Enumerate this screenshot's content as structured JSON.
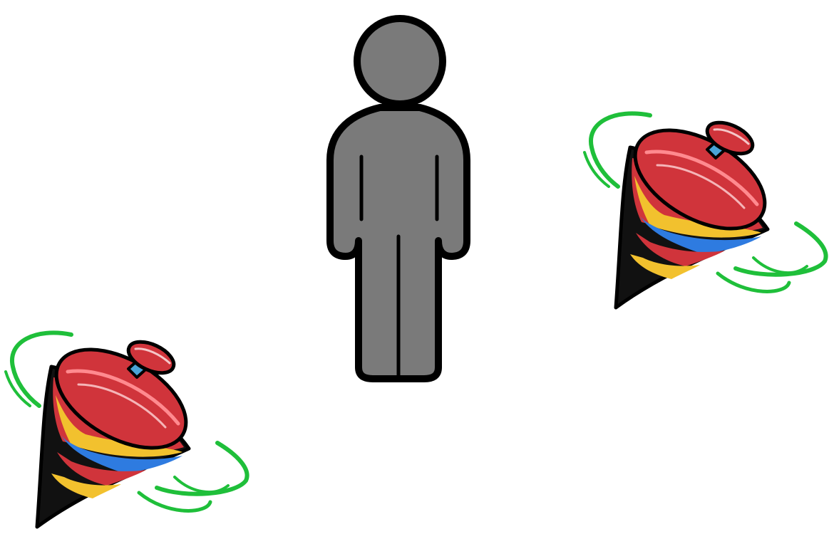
{
  "scene": {
    "background_color": "#ffffff",
    "figures": [
      {
        "icon": "person-silhouette-icon",
        "fill": "#7a7a7a",
        "stroke": "#000000"
      },
      {
        "icon": "spinning-top-icon",
        "count": 2
      }
    ],
    "top_colors": {
      "cap": "#d0343b",
      "yellow": "#f2c12e",
      "blue": "#2e7be0",
      "dark": "#111111",
      "tip": "#c9c2f2",
      "swirl": "#1fbf3a"
    }
  }
}
